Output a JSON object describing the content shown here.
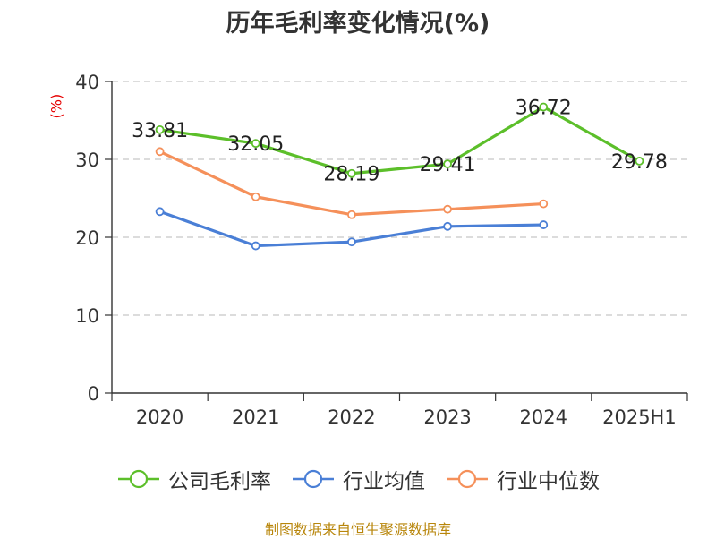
{
  "chart_data": {
    "type": "line",
    "title": "历年毛利率变化情况(%)",
    "ylabel": "(%)",
    "categories": [
      "2020",
      "2021",
      "2022",
      "2023",
      "2024",
      "2025H1"
    ],
    "ylim": [
      0,
      40
    ],
    "yticks": [
      0,
      10,
      20,
      30,
      40
    ],
    "grid": true,
    "legend": "bottom",
    "series": [
      {
        "name": "公司毛利率",
        "color": "#5cbf2a",
        "values": [
          33.81,
          32.05,
          28.19,
          29.41,
          36.72,
          29.78
        ],
        "labels": [
          "33.81",
          "32.05",
          "28.19",
          "29.41",
          "36.72",
          "29.78"
        ]
      },
      {
        "name": "行业均值",
        "color": "#4a7fd6",
        "values": [
          23.3,
          18.9,
          19.4,
          21.4,
          21.6,
          null
        ]
      },
      {
        "name": "行业中位数",
        "color": "#f5905a",
        "values": [
          31.0,
          25.2,
          22.9,
          23.6,
          24.3,
          null
        ]
      }
    ]
  },
  "source": "制图数据来自恒生聚源数据库"
}
